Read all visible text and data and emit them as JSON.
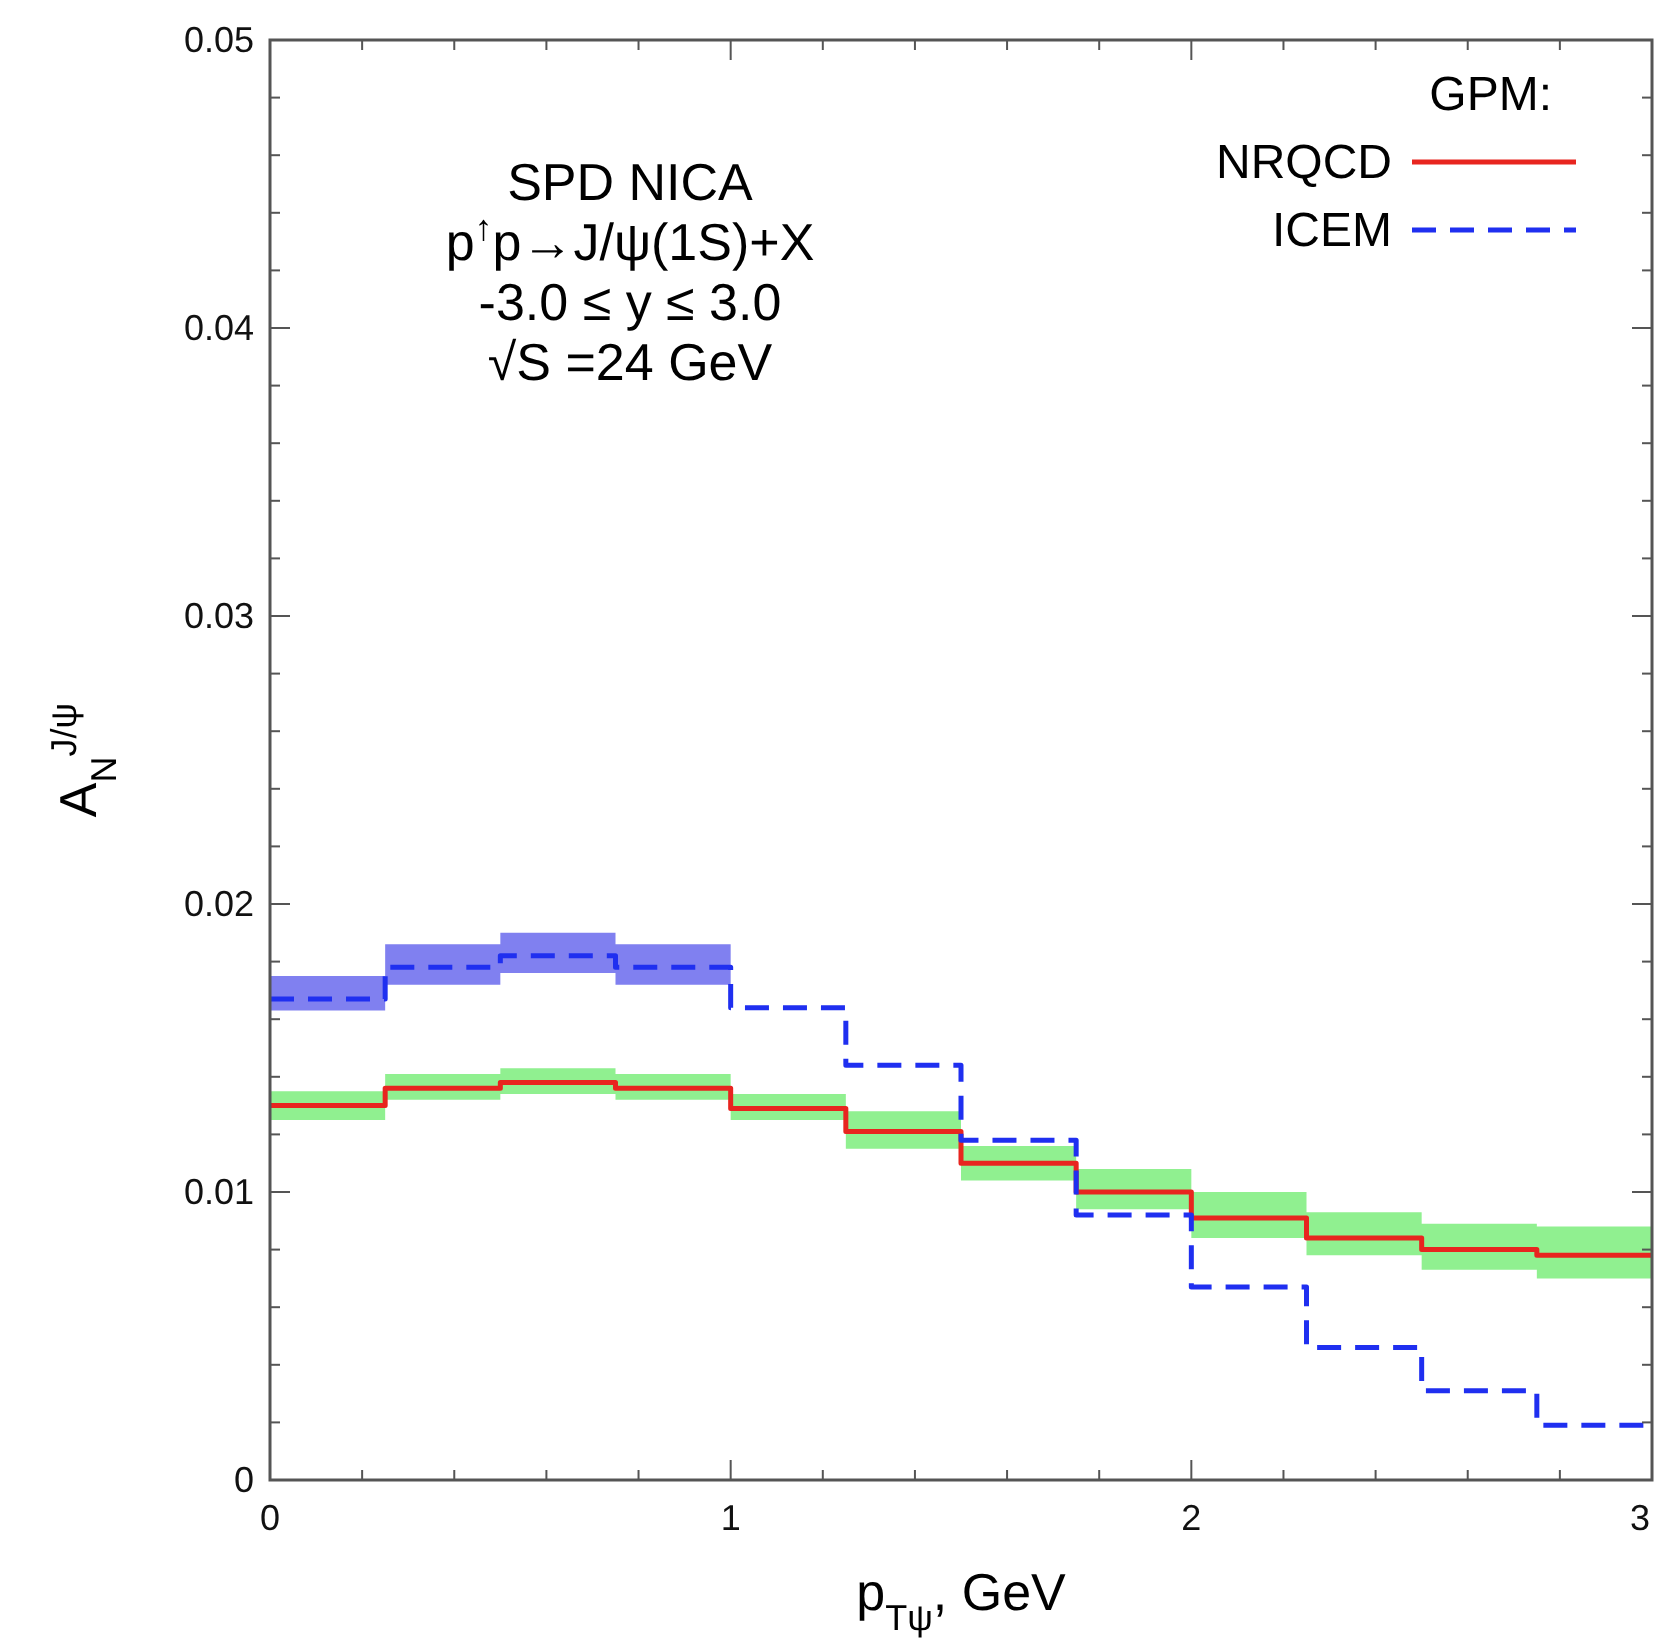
{
  "chart_data": {
    "type": "step",
    "xlabel": "p$_{Tψ}$, GeV",
    "ylabel": "A$_{N}$$^{J/ψ}$",
    "legend_title": "GPM:",
    "legend": "top right",
    "annotations": [
      "SPD NICA",
      "p$^{↑}$p→J/ψ(1S)+X",
      "-3.0 ≤ y ≤ 3.0",
      "√S =24 GeV"
    ],
    "x": [
      0,
      0.25,
      0.5,
      0.75,
      1,
      1.25,
      1.5,
      1.75,
      2,
      2.25,
      2.5,
      2.75,
      3
    ],
    "xlim": [
      0,
      3
    ],
    "ylim": [
      0,
      0.05
    ],
    "xticks": [
      0,
      {
        "value": 0.2,
        "label": null
      },
      {
        "value": 0.4,
        "label": null
      },
      {
        "value": 0.6,
        "label": null
      },
      {
        "value": 0.8,
        "label": null
      },
      1,
      {
        "value": 1.2,
        "label": null
      },
      {
        "value": 1.4,
        "label": null
      },
      {
        "value": 1.6,
        "label": null
      },
      {
        "value": 1.8,
        "label": null
      },
      2,
      {
        "value": 2.2,
        "label": null
      },
      {
        "value": 2.4,
        "label": null
      },
      {
        "value": 2.6,
        "label": null
      },
      {
        "value": 2.8,
        "label": null
      },
      3
    ],
    "yticks": [
      0,
      {
        "value": 0.002,
        "label": null
      },
      {
        "value": 0.004,
        "label": null
      },
      {
        "value": 0.006,
        "label": null
      },
      {
        "value": 0.008,
        "label": null
      },
      0.01,
      {
        "value": 0.012,
        "label": null
      },
      {
        "value": 0.014,
        "label": null
      },
      {
        "value": 0.016,
        "label": null
      },
      {
        "value": 0.018,
        "label": null
      },
      0.02,
      {
        "value": 0.022,
        "label": null
      },
      {
        "value": 0.024,
        "label": null
      },
      {
        "value": 0.026,
        "label": null
      },
      {
        "value": 0.028,
        "label": null
      },
      0.03,
      {
        "value": 0.032,
        "label": null
      },
      {
        "value": 0.034,
        "label": null
      },
      {
        "value": 0.036,
        "label": null
      },
      {
        "value": 0.038,
        "label": null
      },
      0.04,
      {
        "value": 0.042,
        "label": null
      },
      {
        "value": 0.044,
        "label": null
      },
      {
        "value": 0.046,
        "label": null
      },
      {
        "value": 0.048,
        "label": null
      },
      0.05
    ],
    "series": [
      {
        "name": "NRQCD",
        "color": "#e8251f",
        "line_style": "solid",
        "values": [
          0.013,
          0.0136,
          0.0138,
          0.0136,
          0.0129,
          0.0121,
          0.011,
          0.01,
          0.0091,
          0.0084,
          0.008,
          0.0078,
          0.0078
        ],
        "lower": [
          0.0125,
          0.0132,
          0.0134,
          0.0132,
          0.0125,
          0.0115,
          0.0104,
          0.0094,
          0.0084,
          0.0078,
          0.0073,
          0.007,
          0.007
        ],
        "upper": [
          0.0135,
          0.0141,
          0.0143,
          0.0141,
          0.0134,
          0.0128,
          0.0116,
          0.0108,
          0.01,
          0.0093,
          0.0089,
          0.0088,
          0.0088
        ]
      },
      {
        "name": "ICEM",
        "color": "#1f2ff0",
        "line_style": "dashed",
        "values": [
          0.0167,
          0.0178,
          0.0182,
          0.0178,
          0.0164,
          0.0144,
          0.0118,
          0.0092,
          0.0067,
          0.0046,
          0.0031,
          0.0019,
          0.0019
        ],
        "lower": [
          0.0163,
          0.0172,
          0.0176,
          0.0172,
          0.0162,
          null,
          null,
          null,
          null,
          null,
          null,
          null,
          null
        ],
        "upper": [
          0.0175,
          0.0186,
          0.019,
          0.0186,
          0.0171,
          null,
          null,
          null,
          null,
          null,
          null,
          null,
          null
        ]
      }
    ]
  }
}
